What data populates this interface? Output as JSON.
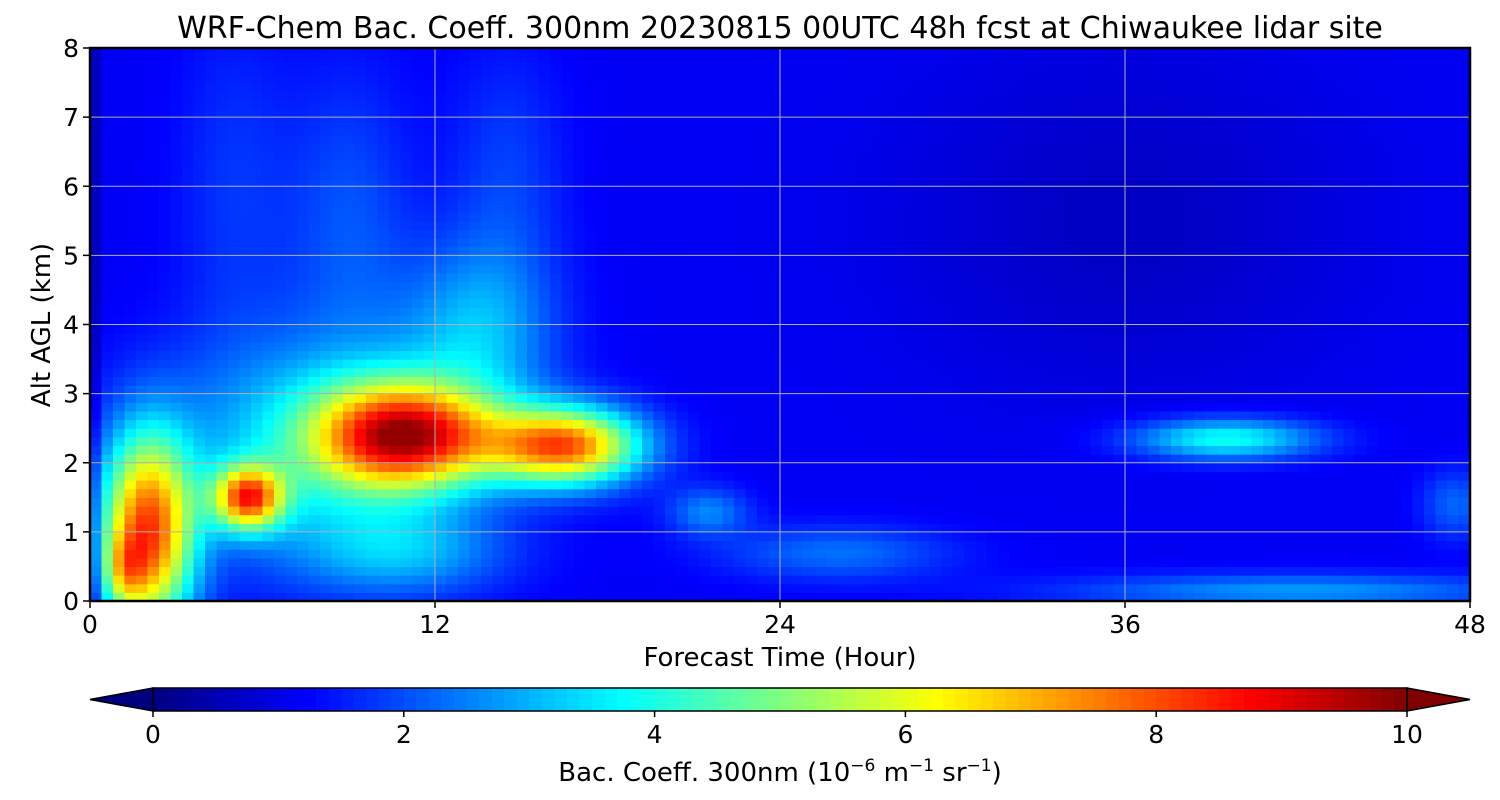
{
  "chart_data": {
    "type": "heatmap",
    "title": "WRF-Chem Bac. Coeff. 300nm  20230815 00UTC 48h fcst at Chiwaukee lidar site",
    "xlabel": "Forecast Time (Hour)",
    "ylabel": "Alt AGL (km)",
    "xlim": [
      0,
      48
    ],
    "ylim": [
      0,
      8
    ],
    "xticks": [
      "0",
      "12",
      "24",
      "36",
      "48"
    ],
    "yticks": [
      "0",
      "1",
      "2",
      "3",
      "4",
      "5",
      "6",
      "7",
      "8"
    ],
    "grid": true,
    "colormap": "jet",
    "colorbar": {
      "label_main": "Bac. Coeff. 300nm  (10",
      "exp1": "−6",
      "label_mid": " m",
      "exp2": "−1",
      "label_mid2": " sr",
      "exp3": "−1",
      "label_end": ")",
      "ticks": [
        "0",
        "2",
        "4",
        "6",
        "8",
        "10"
      ],
      "range": [
        0,
        10
      ],
      "extend": "both"
    },
    "features": [
      {
        "t": 2,
        "z": 1.0,
        "st": 1.6,
        "sz": 1.4,
        "v": 6.8
      },
      {
        "t": 1.2,
        "z": 0.45,
        "st": 0.7,
        "sz": 0.5,
        "v": 2.0
      },
      {
        "t": 5.5,
        "z": 1.5,
        "st": 1.2,
        "sz": 0.45,
        "v": 6.0
      },
      {
        "t": 11,
        "z": 2.4,
        "st": 3.0,
        "sz": 0.75,
        "v": 7.0
      },
      {
        "t": 16.5,
        "z": 2.25,
        "st": 2.6,
        "sz": 0.55,
        "v": 6.6
      },
      {
        "t": 8,
        "z": 2.2,
        "st": 5.0,
        "sz": 1.6,
        "v": 2.4
      },
      {
        "t": 13.5,
        "z": 3.9,
        "st": 2.6,
        "sz": 1.3,
        "v": 1.8
      },
      {
        "t": 9,
        "z": 5.5,
        "st": 2.2,
        "sz": 2.2,
        "v": 0.9
      },
      {
        "t": 14.5,
        "z": 6.2,
        "st": 2.0,
        "sz": 1.8,
        "v": 0.7
      },
      {
        "t": 5,
        "z": 6.0,
        "st": 2.0,
        "sz": 2.5,
        "v": 0.6
      },
      {
        "t": 11,
        "z": 0.7,
        "st": 3.5,
        "sz": 0.6,
        "v": 1.5
      },
      {
        "t": 21.5,
        "z": 1.3,
        "st": 1.4,
        "sz": 0.35,
        "v": 1.4
      },
      {
        "t": 26,
        "z": 0.7,
        "st": 4.0,
        "sz": 0.4,
        "v": 1.2
      },
      {
        "t": 39.5,
        "z": 2.35,
        "st": 3.2,
        "sz": 0.3,
        "v": 2.8
      },
      {
        "t": 47.5,
        "z": 1.4,
        "st": 1.2,
        "sz": 0.5,
        "v": 1.1
      },
      {
        "t": 42,
        "z": 0.15,
        "st": 8.0,
        "sz": 0.25,
        "v": 1.6
      }
    ],
    "background_value": 1.15,
    "upper_minimum": {
      "t": 36,
      "z": 5.5,
      "st": 8.0,
      "sz": 2.5,
      "v": -0.5
    }
  }
}
